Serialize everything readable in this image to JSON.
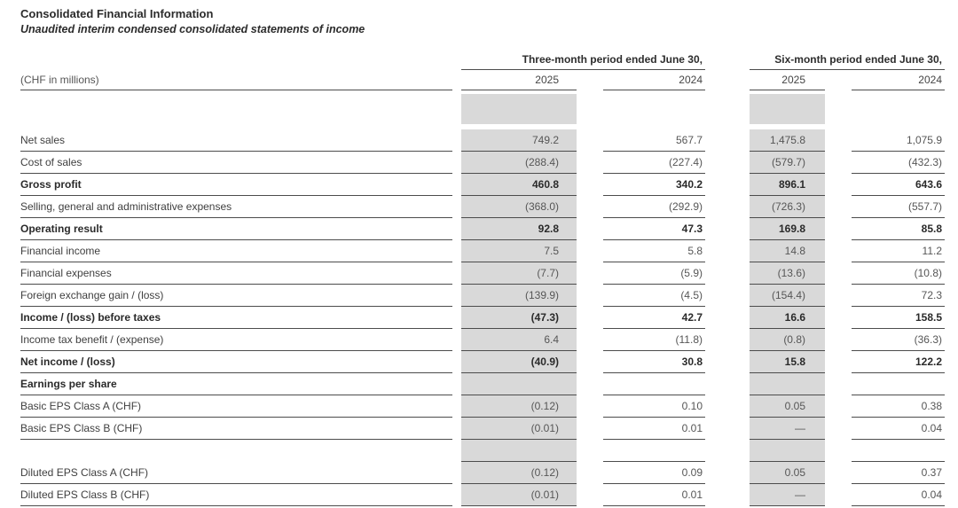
{
  "header": {
    "title": "Consolidated Financial Information",
    "subtitle": "Unaudited interim condensed consolidated statements of income"
  },
  "table": {
    "unit_label": "(CHF in millions)",
    "column_groups": [
      {
        "label": "Three-month period ended June 30,",
        "years": [
          "2025",
          "2024"
        ]
      },
      {
        "label": "Six-month period ended June 30,",
        "years": [
          "2025",
          "2024"
        ]
      }
    ],
    "rows": [
      {
        "label": "Net sales",
        "bold": false,
        "spacer": false,
        "values": [
          "749.2",
          "567.7",
          "1,475.8",
          "1,075.9"
        ]
      },
      {
        "label": "Cost of sales",
        "bold": false,
        "spacer": false,
        "values": [
          "(288.4)",
          "(227.4)",
          "(579.7)",
          "(432.3)"
        ]
      },
      {
        "label": "Gross profit",
        "bold": true,
        "spacer": false,
        "values": [
          "460.8",
          "340.2",
          "896.1",
          "643.6"
        ]
      },
      {
        "label": "Selling, general and administrative expenses",
        "bold": false,
        "spacer": false,
        "values": [
          "(368.0)",
          "(292.9)",
          "(726.3)",
          "(557.7)"
        ]
      },
      {
        "label": "Operating result",
        "bold": true,
        "spacer": false,
        "values": [
          "92.8",
          "47.3",
          "169.8",
          "85.8"
        ]
      },
      {
        "label": "Financial income",
        "bold": false,
        "spacer": false,
        "values": [
          "7.5",
          "5.8",
          "14.8",
          "11.2"
        ]
      },
      {
        "label": "Financial expenses",
        "bold": false,
        "spacer": false,
        "values": [
          "(7.7)",
          "(5.9)",
          "(13.6)",
          "(10.8)"
        ]
      },
      {
        "label": "Foreign exchange gain / (loss)",
        "bold": false,
        "spacer": false,
        "values": [
          "(139.9)",
          "(4.5)",
          "(154.4)",
          "72.3"
        ]
      },
      {
        "label": "Income / (loss) before taxes",
        "bold": true,
        "spacer": false,
        "values": [
          "(47.3)",
          "42.7",
          "16.6",
          "158.5"
        ]
      },
      {
        "label": "Income tax benefit / (expense)",
        "bold": false,
        "spacer": false,
        "values": [
          "6.4",
          "(11.8)",
          "(0.8)",
          "(36.3)"
        ]
      },
      {
        "label": "Net income / (loss)",
        "bold": true,
        "spacer": false,
        "values": [
          "(40.9)",
          "30.8",
          "15.8",
          "122.2"
        ]
      },
      {
        "label": "Earnings per share",
        "bold": true,
        "spacer": false,
        "values": [
          "",
          "",
          "",
          ""
        ]
      },
      {
        "label": "Basic EPS Class A (CHF)",
        "bold": false,
        "spacer": false,
        "values": [
          "(0.12)",
          "0.10",
          "0.05",
          "0.38"
        ]
      },
      {
        "label": "Basic EPS Class B (CHF)",
        "bold": false,
        "spacer": false,
        "values": [
          "(0.01)",
          "0.01",
          "—",
          "0.04"
        ]
      },
      {
        "label": "",
        "bold": false,
        "spacer": true,
        "values": [
          "",
          "",
          "",
          ""
        ]
      },
      {
        "label": "Diluted EPS Class A (CHF)",
        "bold": false,
        "spacer": false,
        "values": [
          "(0.12)",
          "0.09",
          "0.05",
          "0.37"
        ]
      },
      {
        "label": "Diluted EPS Class B (CHF)",
        "bold": false,
        "spacer": false,
        "values": [
          "(0.01)",
          "0.01",
          "—",
          "0.04"
        ]
      }
    ]
  },
  "colors": {
    "highlight_column": "#d9d9d9",
    "rule_line": "#4c4c4c"
  }
}
